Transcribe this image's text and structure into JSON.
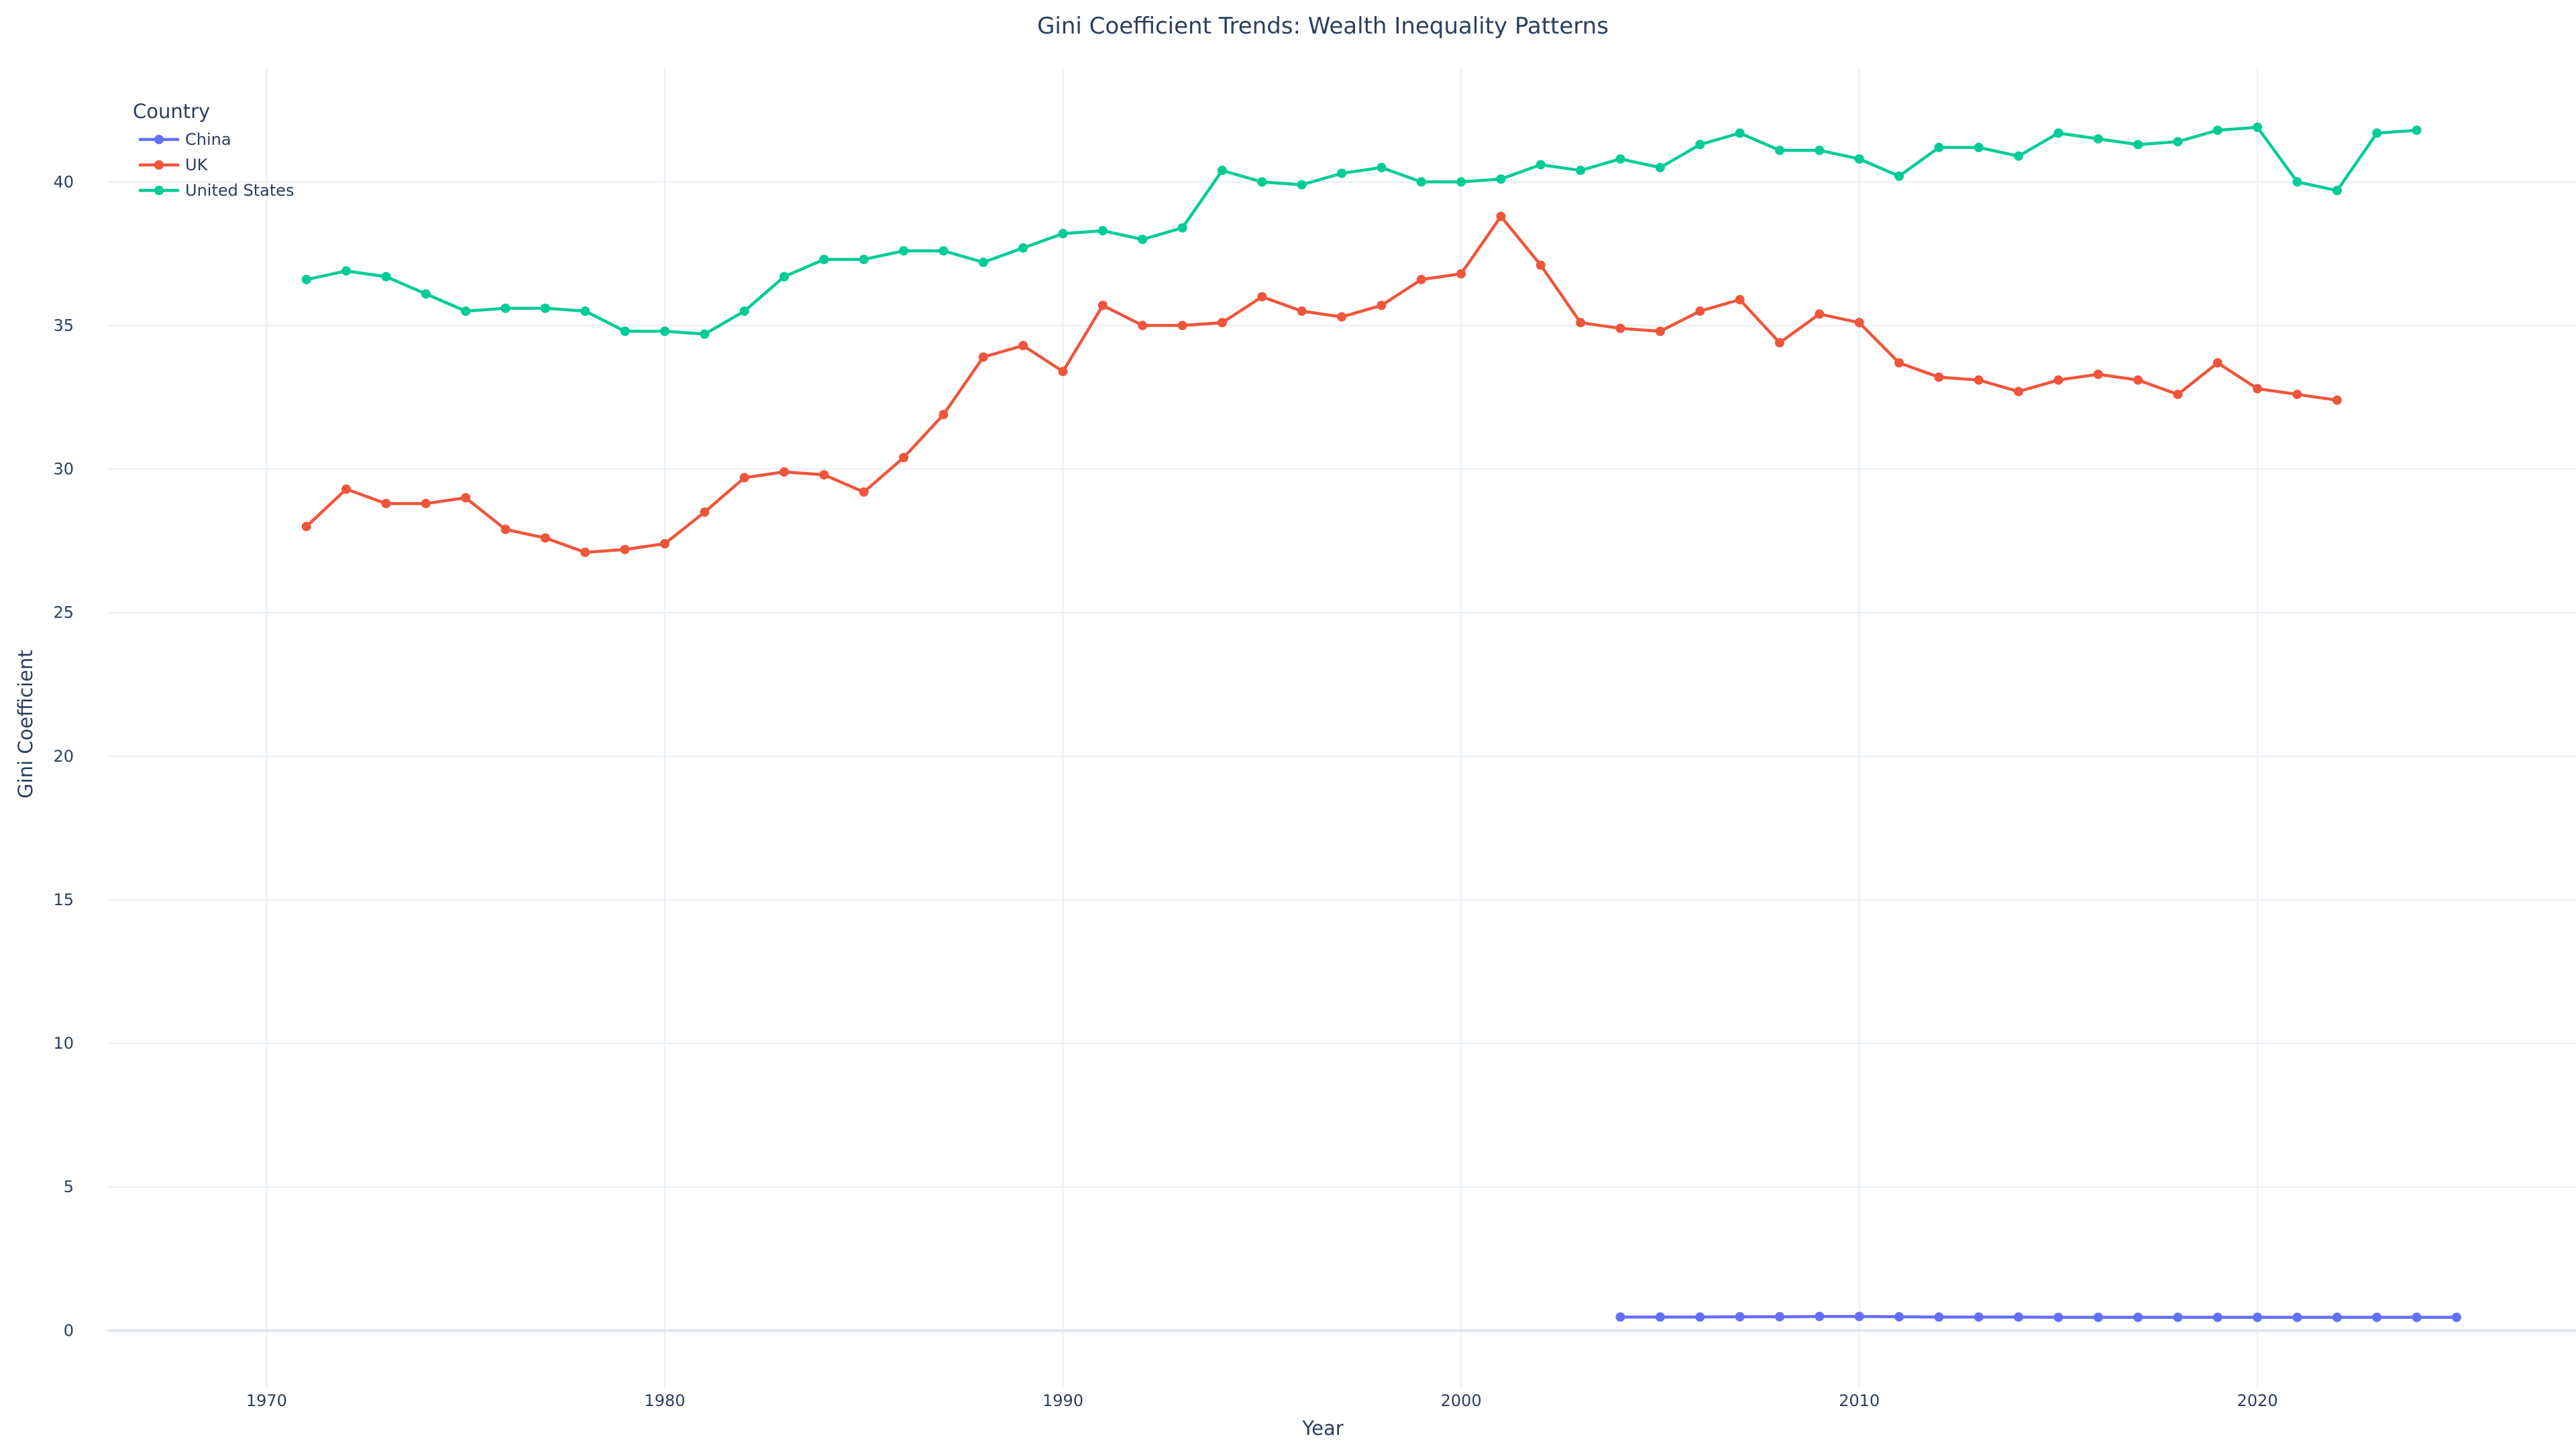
{
  "chart_data": {
    "type": "line",
    "title": "Gini Coefficient Trends: Wealth Inequality Patterns",
    "xlabel": "Year",
    "ylabel": "Gini Coefficient",
    "xlim": [
      1966,
      2028
    ],
    "ylim": [
      -2,
      44
    ],
    "xticks": [
      1970,
      1980,
      1990,
      2000,
      2010,
      2020
    ],
    "yticks": [
      0,
      5,
      10,
      15,
      20,
      25,
      30,
      35,
      40
    ],
    "grid": true,
    "legend": {
      "title": "Country",
      "placement": "top-left"
    },
    "series": [
      {
        "name": "China",
        "color": "#636efa",
        "x": [
          2004,
          2005,
          2006,
          2007,
          2008,
          2009,
          2010,
          2011,
          2012,
          2013,
          2014,
          2015,
          2016,
          2017,
          2018,
          2019,
          2020,
          2021,
          2022,
          2023,
          2024,
          2025
        ],
        "y": [
          0.47,
          0.47,
          0.47,
          0.48,
          0.48,
          0.49,
          0.49,
          0.48,
          0.47,
          0.47,
          0.47,
          0.46,
          0.46,
          0.46,
          0.46,
          0.46,
          0.46,
          0.46,
          0.46,
          0.46,
          0.46,
          0.46
        ]
      },
      {
        "name": "UK",
        "color": "#ef553b",
        "x": [
          1971,
          1972,
          1973,
          1974,
          1975,
          1976,
          1977,
          1978,
          1979,
          1980,
          1981,
          1982,
          1983,
          1984,
          1985,
          1986,
          1987,
          1988,
          1989,
          1990,
          1991,
          1992,
          1993,
          1994,
          1995,
          1996,
          1997,
          1998,
          1999,
          2000,
          2001,
          2002,
          2003,
          2004,
          2005,
          2006,
          2007,
          2008,
          2009,
          2010,
          2011,
          2012,
          2013,
          2014,
          2015,
          2016,
          2017,
          2018,
          2019,
          2020,
          2021,
          2022
        ],
        "y": [
          28.0,
          29.3,
          28.8,
          28.8,
          29.0,
          27.9,
          27.6,
          27.1,
          27.2,
          27.4,
          28.5,
          29.7,
          29.9,
          29.8,
          29.2,
          30.4,
          31.9,
          33.9,
          34.3,
          33.4,
          35.7,
          35.0,
          35.0,
          35.1,
          36.0,
          35.5,
          35.3,
          35.7,
          36.6,
          36.8,
          38.8,
          37.1,
          35.1,
          34.9,
          34.8,
          35.5,
          35.9,
          34.4,
          35.4,
          35.1,
          33.7,
          33.2,
          33.1,
          32.7,
          33.1,
          33.3,
          33.1,
          32.6,
          33.7,
          32.8,
          32.6,
          32.4
        ]
      },
      {
        "name": "United States",
        "color": "#00cc96",
        "x": [
          1971,
          1972,
          1973,
          1974,
          1975,
          1976,
          1977,
          1978,
          1979,
          1980,
          1981,
          1982,
          1983,
          1984,
          1985,
          1986,
          1987,
          1988,
          1989,
          1990,
          1991,
          1992,
          1993,
          1994,
          1995,
          1996,
          1997,
          1998,
          1999,
          2000,
          2001,
          2002,
          2003,
          2004,
          2005,
          2006,
          2007,
          2008,
          2009,
          2010,
          2011,
          2012,
          2013,
          2014,
          2015,
          2016,
          2017,
          2018,
          2019,
          2020,
          2021,
          2022,
          2023,
          2024
        ],
        "y": [
          36.6,
          36.9,
          36.7,
          36.1,
          35.5,
          35.6,
          35.6,
          35.5,
          34.8,
          34.8,
          34.7,
          35.5,
          36.7,
          37.3,
          37.3,
          37.6,
          37.6,
          37.2,
          37.7,
          38.2,
          38.3,
          38.0,
          38.4,
          40.4,
          40.0,
          39.9,
          40.3,
          40.5,
          40.0,
          40.0,
          40.1,
          40.6,
          40.4,
          40.8,
          40.5,
          41.3,
          41.7,
          41.1,
          41.1,
          40.8,
          40.2,
          41.2,
          41.2,
          40.9,
          41.7,
          41.5,
          41.3,
          41.4,
          41.8,
          41.9,
          40.0,
          39.7,
          41.7,
          41.8
        ]
      }
    ]
  }
}
